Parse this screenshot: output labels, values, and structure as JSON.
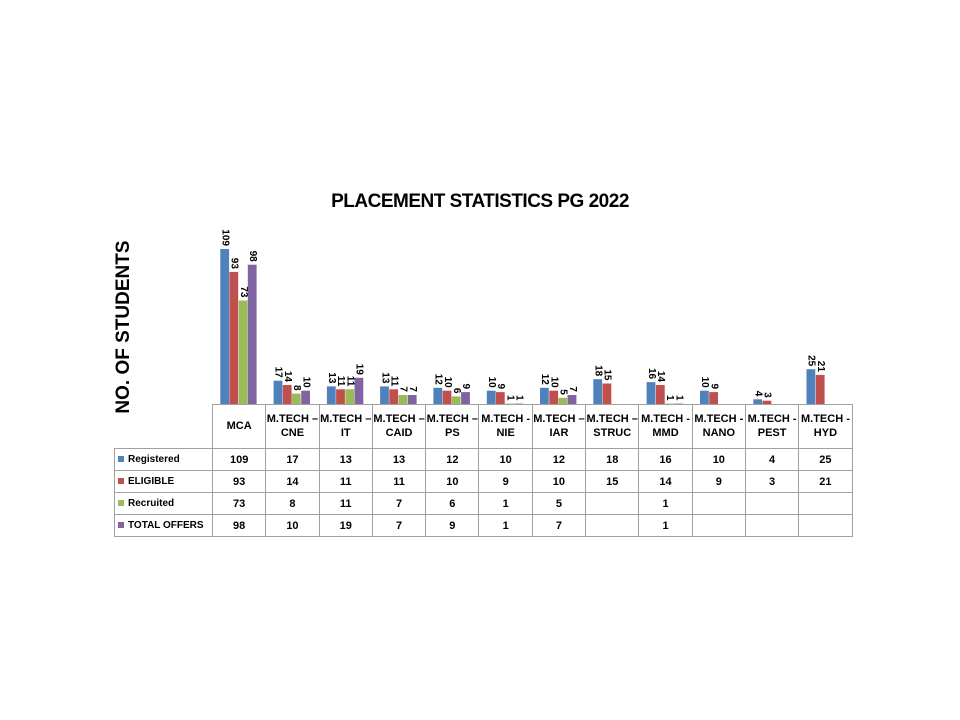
{
  "chart_data": {
    "type": "bar",
    "title": "PLACEMENT STATISTICS PG 2022",
    "ylabel": "NO. OF STUDENTS",
    "xlabel": "",
    "ylim": [
      0,
      109
    ],
    "grid": false,
    "legend": "data-table-left",
    "categories": [
      "MCA",
      "M.TECH – CNE",
      "M.TECH – IT",
      "M.TECH – CAID",
      "M.TECH – PS",
      "M.TECH - NIE",
      "M.TECH – IAR",
      "M.TECH – STRUC",
      "M.TECH - MMD",
      "M.TECH - NANO",
      "M.TECH - PEST",
      "M.TECH - HYD"
    ],
    "series": [
      {
        "name": "Registered",
        "color": "#4f81bd",
        "values": [
          109,
          17,
          13,
          13,
          12,
          10,
          12,
          18,
          16,
          10,
          4,
          25
        ]
      },
      {
        "name": "ELIGIBLE",
        "color": "#c0504d",
        "values": [
          93,
          14,
          11,
          11,
          10,
          9,
          10,
          15,
          14,
          9,
          3,
          21
        ]
      },
      {
        "name": "Recruited",
        "color": "#9bbb59",
        "values": [
          73,
          8,
          11,
          7,
          6,
          1,
          5,
          null,
          1,
          null,
          null,
          null
        ]
      },
      {
        "name": "TOTAL OFFERS",
        "color": "#8064a2",
        "values": [
          98,
          10,
          19,
          7,
          9,
          1,
          7,
          null,
          1,
          null,
          null,
          null
        ]
      }
    ]
  }
}
